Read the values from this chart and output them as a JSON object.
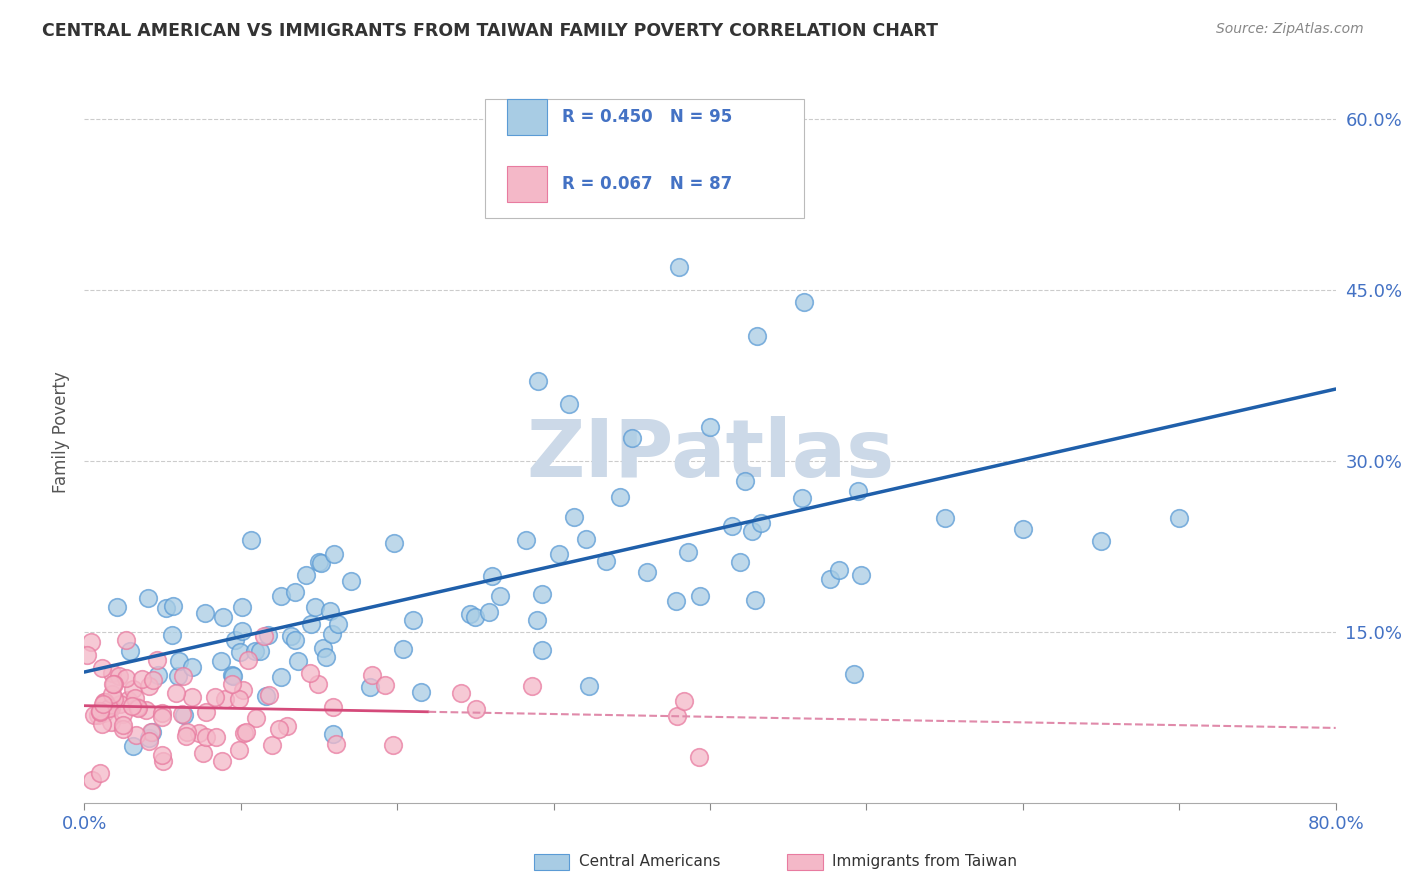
{
  "title": "CENTRAL AMERICAN VS IMMIGRANTS FROM TAIWAN FAMILY POVERTY CORRELATION CHART",
  "source": "Source: ZipAtlas.com",
  "ylabel": "Family Poverty",
  "xlim": [
    0.0,
    0.8
  ],
  "ylim": [
    0.0,
    0.65
  ],
  "xticks": [
    0.0,
    0.1,
    0.2,
    0.3,
    0.4,
    0.5,
    0.6,
    0.7,
    0.8
  ],
  "xticklabels": [
    "0.0%",
    "",
    "",
    "",
    "",
    "",
    "",
    "",
    "80.0%"
  ],
  "ytick_positions": [
    0.15,
    0.3,
    0.45,
    0.6
  ],
  "ytick_labels": [
    "15.0%",
    "30.0%",
    "45.0%",
    "60.0%"
  ],
  "blue_face": "#a8cce4",
  "blue_edge": "#5b9bd5",
  "pink_face": "#f4b8c8",
  "pink_edge": "#e87ba0",
  "trend_blue": "#1f5faa",
  "trend_pink_solid": "#d44a7a",
  "trend_pink_dash": "#e08aaa",
  "watermark_color": "#ccd9e8",
  "tick_color": "#4472c4",
  "title_color": "#333333",
  "source_color": "#888888",
  "grid_color": "#cccccc"
}
